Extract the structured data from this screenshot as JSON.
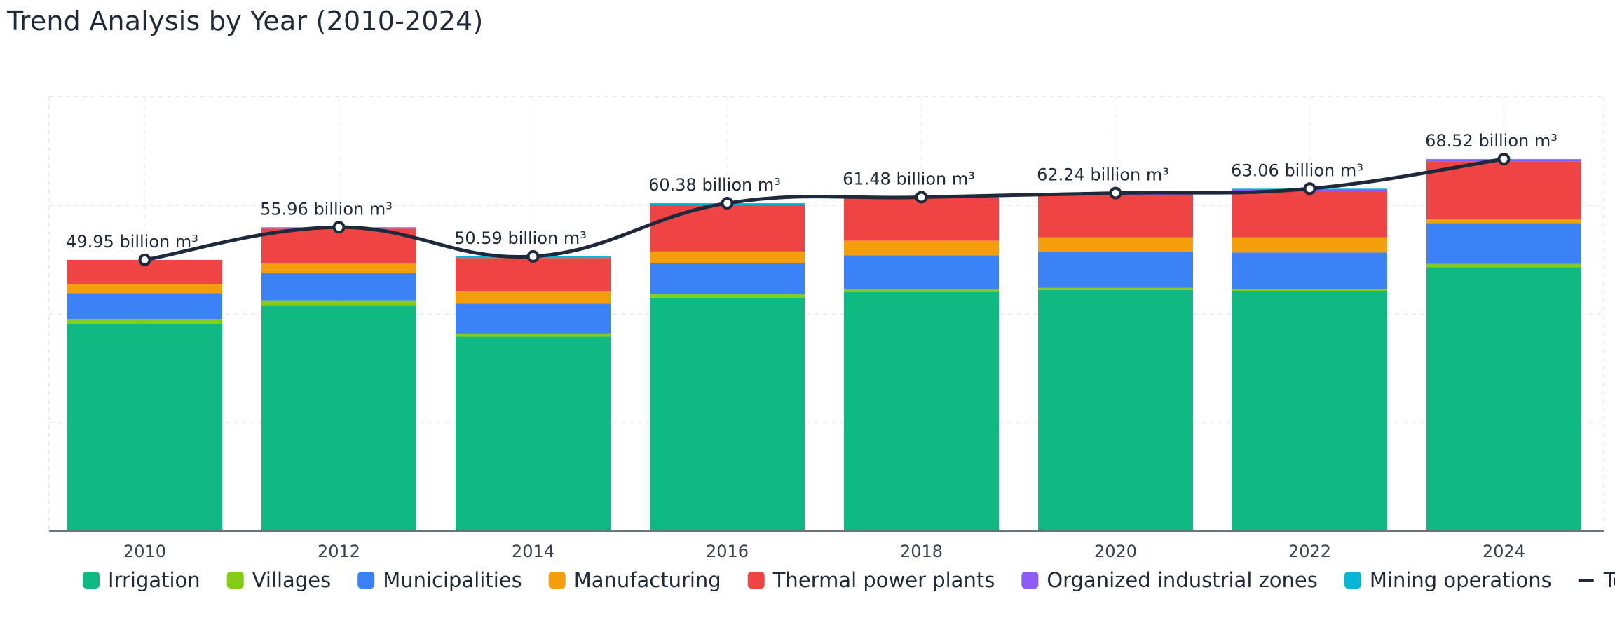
{
  "chart_data": {
    "type": "bar",
    "stacked": true,
    "title": "Trend Analysis by Year (2010-2024)",
    "xlabel": "",
    "ylabel": "",
    "unit": "billion m³",
    "categories": [
      "2010",
      "2012",
      "2014",
      "2016",
      "2018",
      "2020",
      "2022",
      "2024"
    ],
    "ylim": [
      0,
      80
    ],
    "grid": true,
    "legend_position": "bottom",
    "series": [
      {
        "name": "Irrigation",
        "color": "#10b981",
        "values": [
          38.1,
          41.5,
          35.8,
          43.0,
          44.0,
          44.4,
          44.2,
          48.6
        ]
      },
      {
        "name": "Villages",
        "color": "#84cc16",
        "values": [
          1.0,
          1.0,
          0.6,
          0.6,
          0.6,
          0.4,
          0.4,
          0.6
        ]
      },
      {
        "name": "Municipalities",
        "color": "#3b82f6",
        "values": [
          4.7,
          5.1,
          5.5,
          5.7,
          6.2,
          6.6,
          6.7,
          7.5
        ]
      },
      {
        "name": "Manufacturing",
        "color": "#f59e0b",
        "values": [
          1.7,
          1.7,
          2.2,
          2.2,
          2.7,
          2.7,
          2.8,
          0.7
        ]
      },
      {
        "name": "Thermal power plants",
        "color": "#ef4444",
        "values": [
          4.45,
          6.4,
          6.2,
          8.5,
          7.8,
          7.8,
          8.6,
          10.7
        ]
      },
      {
        "name": "Organized industrial zones",
        "color": "#8b5cf6",
        "values": [
          0.0,
          0.26,
          0.0,
          0.1,
          0.1,
          0.2,
          0.2,
          0.3
        ]
      },
      {
        "name": "Mining operations",
        "color": "#06b6d4",
        "values": [
          0.0,
          0.0,
          0.29,
          0.28,
          0.08,
          0.14,
          0.16,
          0.12
        ]
      }
    ],
    "total": {
      "name": "Total",
      "color": "#1e293b",
      "values": [
        49.95,
        55.96,
        50.59,
        60.38,
        61.48,
        62.24,
        63.06,
        68.52
      ],
      "labels": [
        "49.95 billion m³",
        "55.96 billion m³",
        "50.59 billion m³",
        "60.38 billion m³",
        "61.48 billion m³",
        "62.24 billion m³",
        "63.06 billion m³",
        "68.52 billion m³"
      ]
    }
  }
}
